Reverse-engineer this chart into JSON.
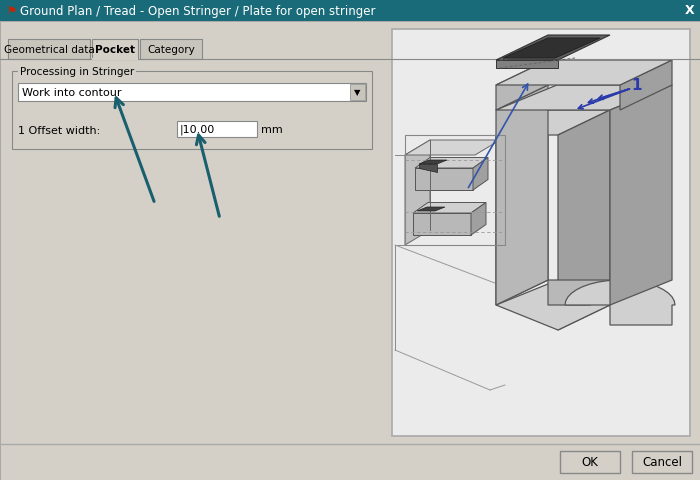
{
  "title": "Ground Plan / Tread - Open Stringer / Plate for open stringer",
  "title_bar_color": "#1a6b7a",
  "title_text_color": "#ffffff",
  "bg_color": "#d4d0c8",
  "content_bg": "#d4d0c8",
  "tab_active": "Pocket",
  "tabs": [
    "Geometrical data",
    "Pocket",
    "Category"
  ],
  "group_label": "Processing in Stringer",
  "dropdown_text": "Work into contour",
  "field_label": "1 Offset width:",
  "field_value": "10.00",
  "field_unit": "mm",
  "ok_text": "OK",
  "cancel_text": "Cancel",
  "arrow_color": "#1a5f6e",
  "diagram_bg": "#ebebeb",
  "diagram_border": "#aaaaaa"
}
